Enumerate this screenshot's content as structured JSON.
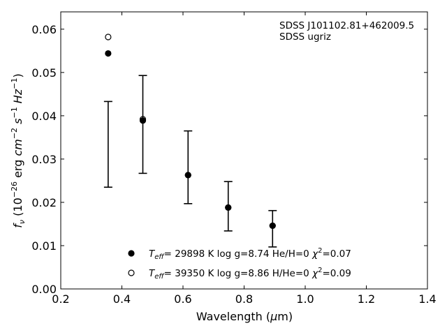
{
  "chart_data": {
    "type": "scatter",
    "xlabel": "Wavelength (μm)",
    "xlabel_parts": [
      "Wavelength (",
      "μ",
      "m)"
    ],
    "ylabel_parts": [
      "f",
      "ν",
      " (10",
      "−26",
      " erg ",
      "cm",
      "−2",
      " ",
      "s",
      "−1",
      " ",
      "Hz",
      "−1",
      ")"
    ],
    "xlim": [
      0.2,
      1.4
    ],
    "ylim": [
      0.0,
      0.064
    ],
    "xticks": [
      0.2,
      0.4,
      0.6,
      0.8,
      1.0,
      1.2,
      1.4
    ],
    "xtick_labels": [
      "0.2",
      "0.4",
      "0.6",
      "0.8",
      "1.0",
      "1.2",
      "1.4"
    ],
    "yticks": [
      0.0,
      0.01,
      0.02,
      0.03,
      0.04,
      0.05,
      0.06
    ],
    "ytick_labels": [
      "0.00",
      "0.01",
      "0.02",
      "0.03",
      "0.04",
      "0.05",
      "0.06"
    ],
    "annotation": {
      "line1": "SDSS J101102.81+462009.5",
      "line2": "SDSS ugriz"
    },
    "observed": {
      "x": [
        0.3551,
        0.4686,
        0.6166,
        0.748,
        0.8932
      ],
      "y": [
        0.0334,
        0.038,
        0.0281,
        0.0191,
        0.0139
      ],
      "yerr_low": [
        0.0099,
        0.0113,
        0.0084,
        0.0057,
        0.0042
      ],
      "yerr_high": [
        0.0099,
        0.0113,
        0.0084,
        0.0057,
        0.0042
      ]
    },
    "series": [
      {
        "marker": "filled",
        "legend_parts": [
          "T",
          "eff",
          "= 29898 K  log g=8.74  He/H=0  ",
          "χ",
          "2",
          "=0.07"
        ],
        "x": [
          0.3551,
          0.4686,
          0.6166,
          0.748,
          0.8932
        ],
        "y": [
          0.0544,
          0.0389,
          0.0263,
          0.0188,
          0.0146
        ]
      },
      {
        "marker": "open",
        "legend_parts": [
          "T",
          "eff",
          "= 39350 K  log g=8.86  H/He=0  ",
          "χ",
          "2",
          "=0.09"
        ],
        "x": [
          0.3551,
          0.4686,
          0.6166,
          0.748,
          0.8932
        ],
        "y": [
          0.0582,
          0.0392,
          0.0263,
          0.0188,
          0.0146
        ]
      }
    ],
    "colors": {
      "axes": "#000000",
      "markers": "#000000",
      "background": "#ffffff"
    }
  }
}
